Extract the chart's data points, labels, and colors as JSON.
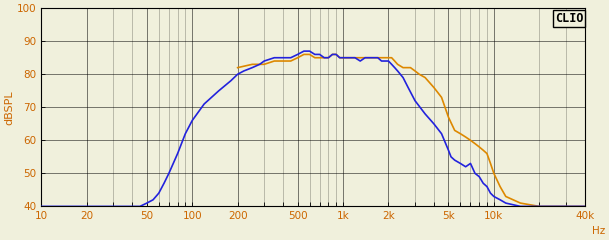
{
  "title": "CLIO",
  "ylabel": "dBSPL",
  "xlabel_end": "Hz",
  "xmin": 10,
  "xmax": 40000,
  "ymin": 40,
  "ymax": 100,
  "yticks": [
    40,
    50,
    60,
    70,
    80,
    90,
    100
  ],
  "xticks": [
    10,
    20,
    50,
    100,
    200,
    500,
    1000,
    2000,
    5000,
    10000,
    40000
  ],
  "xticklabels": [
    "10",
    "20",
    "50",
    "100",
    "200",
    "500",
    "1k",
    "2k",
    "5k",
    "10k",
    "40k"
  ],
  "color_blue": "#2222dd",
  "color_orange": "#dd8800",
  "background_color": "#f0f0dc",
  "grid_color": "#000000",
  "label_color": "#cc6600",
  "blue_curve": {
    "freqs": [
      10,
      20,
      30,
      40,
      45,
      50,
      55,
      60,
      65,
      70,
      80,
      90,
      100,
      120,
      150,
      180,
      200,
      220,
      250,
      280,
      300,
      350,
      400,
      450,
      500,
      550,
      600,
      650,
      700,
      750,
      800,
      850,
      900,
      950,
      1000,
      1100,
      1200,
      1300,
      1400,
      1500,
      1600,
      1700,
      1800,
      1900,
      2000,
      2100,
      2200,
      2300,
      2500,
      2700,
      3000,
      3500,
      4000,
      4500,
      5000,
      5200,
      5500,
      6000,
      6500,
      7000,
      7500,
      8000,
      8500,
      9000,
      9500,
      10000,
      11000,
      12000,
      15000,
      20000,
      40000
    ],
    "spl": [
      40,
      40,
      40,
      40,
      40,
      41,
      42,
      44,
      47,
      50,
      56,
      62,
      66,
      71,
      75,
      78,
      80,
      81,
      82,
      83,
      84,
      85,
      85,
      85,
      86,
      87,
      87,
      86,
      86,
      85,
      85,
      86,
      86,
      85,
      85,
      85,
      85,
      84,
      85,
      85,
      85,
      85,
      84,
      84,
      84,
      83,
      82,
      81,
      79,
      76,
      72,
      68,
      65,
      62,
      57,
      55,
      54,
      53,
      52,
      53,
      50,
      49,
      47,
      46,
      44,
      43,
      42,
      41,
      40,
      40,
      40
    ]
  },
  "orange_curve": {
    "freqs": [
      200,
      250,
      280,
      300,
      350,
      400,
      450,
      500,
      550,
      600,
      650,
      700,
      750,
      800,
      850,
      900,
      950,
      1000,
      1100,
      1200,
      1300,
      1400,
      1500,
      1600,
      1700,
      1800,
      1900,
      2000,
      2100,
      2200,
      2300,
      2500,
      2700,
      2800,
      3000,
      3200,
      3500,
      4000,
      4500,
      5000,
      5500,
      6000,
      6500,
      7000,
      7500,
      8000,
      8500,
      9000,
      9500,
      10000,
      11000,
      12000,
      15000,
      20000,
      40000
    ],
    "spl": [
      82,
      83,
      83,
      83,
      84,
      84,
      84,
      85,
      86,
      86,
      85,
      85,
      85,
      85,
      86,
      86,
      85,
      85,
      85,
      85,
      85,
      85,
      85,
      85,
      85,
      85,
      85,
      85,
      85,
      84,
      83,
      82,
      82,
      82,
      81,
      80,
      79,
      76,
      73,
      67,
      63,
      62,
      61,
      60,
      59,
      58,
      57,
      56,
      53,
      50,
      46,
      43,
      41,
      40,
      40
    ]
  }
}
